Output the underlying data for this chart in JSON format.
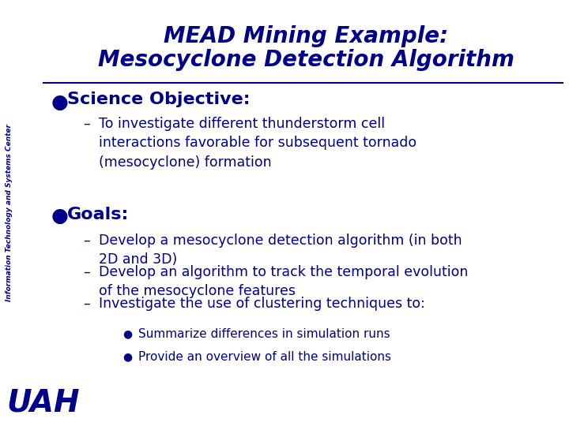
{
  "title_line1": "MEAD Mining Example:",
  "title_line2": "Mesocyclone Detection Algorithm",
  "title_color": "#00008B",
  "title_fontsize": 20,
  "bg_color": "#FFFFFF",
  "text_color": "#00008B",
  "bullet1_header": "Science Objective:",
  "bullet1_sub": "To investigate different thunderstorm cell\ninteractions favorable for subsequent tornado\n(mesocyclone) formation",
  "bullet2_header": "Goals:",
  "bullet2_subs": [
    "Develop a mesocyclone detection algorithm (in both\n2D and 3D)",
    "Develop an algorithm to track the temporal evolution\nof the mesocyclone features",
    "Investigate the use of clustering techniques to:"
  ],
  "sub_bullets": [
    "Summarize differences in simulation runs",
    "Provide an overview of all the simulations"
  ],
  "sidebar_text": "Information Technology and Systems Center",
  "header_fontsize": 16,
  "sub_fontsize": 12.5,
  "sub_sub_fontsize": 11,
  "sidebar_fontsize": 6.5,
  "uah_fontsize": 28
}
